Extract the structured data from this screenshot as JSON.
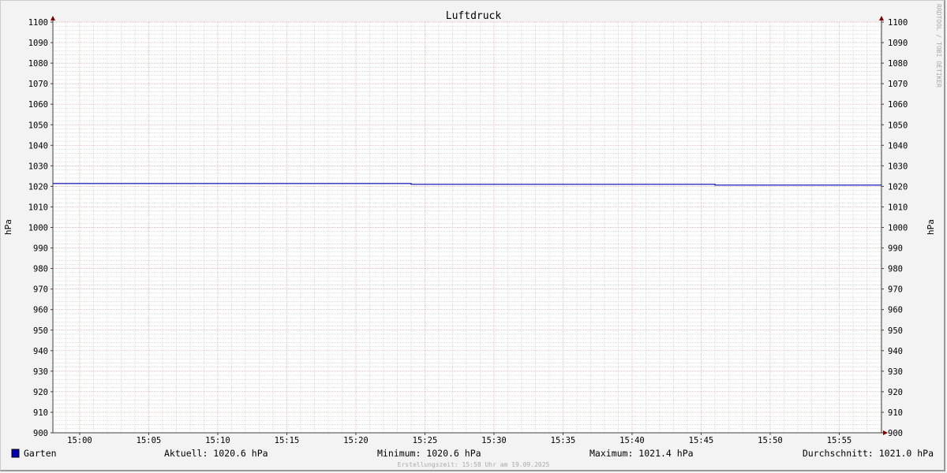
{
  "chart_data": {
    "type": "line",
    "title": "Luftdruck",
    "ylabel": "hPa",
    "ylabel_right": "hPa",
    "ylim": [
      900,
      1100
    ],
    "yticks": [
      900,
      910,
      920,
      930,
      940,
      950,
      960,
      970,
      980,
      990,
      1000,
      1010,
      1020,
      1030,
      1040,
      1050,
      1060,
      1070,
      1080,
      1090,
      1100
    ],
    "xlim": [
      "14:58",
      "15:58"
    ],
    "xticks": [
      "15:00",
      "15:05",
      "15:10",
      "15:15",
      "15:20",
      "15:25",
      "15:30",
      "15:35",
      "15:40",
      "15:45",
      "15:50",
      "15:55"
    ],
    "grid": true,
    "series": [
      {
        "name": "Garten",
        "color": "#0000b4",
        "x": [
          "14:58",
          "15:24",
          "15:24",
          "15:46",
          "15:46",
          "15:58"
        ],
        "y": [
          1021.4,
          1021.4,
          1021.0,
          1021.0,
          1020.6,
          1020.6
        ]
      }
    ],
    "legend": {
      "label": "Garten",
      "current": "Aktuell: 1020.6 hPa",
      "minimum": "Minimum: 1020.6 hPa",
      "maximum": "Maximum: 1021.4 hPa",
      "average": "Durchschnitt: 1021.0 hPa",
      "placement": "bottom"
    },
    "watermark": "RRDTOOL / TOBI OETIKER",
    "footer": "Erstellungszeit: 15:58 Uhr am 19.09.2025"
  },
  "colors": {
    "background": "#f3f3f3",
    "plot": "#ffffff",
    "major_grid": "#e6a0a0",
    "minor_grid": "#c8c8c8",
    "axis": "#404040",
    "arrow": "#800000"
  }
}
